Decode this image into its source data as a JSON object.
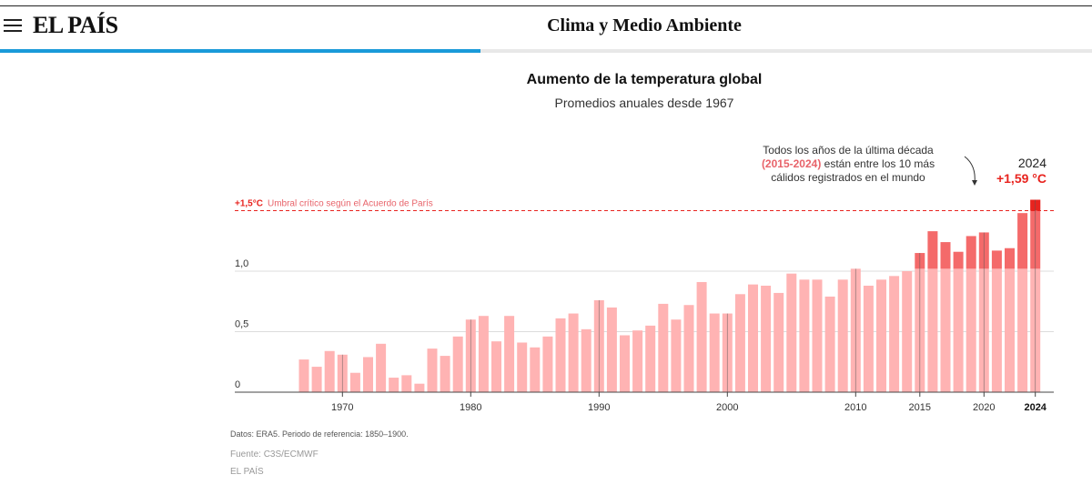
{
  "header": {
    "logo": "EL PAÍS",
    "section": "Clima y Medio Ambiente",
    "read_progress": 0.44
  },
  "chart_data": {
    "type": "bar",
    "title": "Aumento de la temperatura global",
    "subtitle": "Promedios anuales desde 1967",
    "x": [
      1967,
      1968,
      1969,
      1970,
      1971,
      1972,
      1973,
      1974,
      1975,
      1976,
      1977,
      1978,
      1979,
      1980,
      1981,
      1982,
      1983,
      1984,
      1985,
      1986,
      1987,
      1988,
      1989,
      1990,
      1991,
      1992,
      1993,
      1994,
      1995,
      1996,
      1997,
      1998,
      1999,
      2000,
      2001,
      2002,
      2003,
      2004,
      2005,
      2006,
      2007,
      2008,
      2009,
      2010,
      2011,
      2012,
      2013,
      2014,
      2015,
      2016,
      2017,
      2018,
      2019,
      2020,
      2021,
      2022,
      2023,
      2024
    ],
    "values": [
      0.27,
      0.21,
      0.34,
      0.31,
      0.16,
      0.29,
      0.4,
      0.12,
      0.14,
      0.07,
      0.36,
      0.3,
      0.46,
      0.6,
      0.63,
      0.42,
      0.63,
      0.41,
      0.37,
      0.46,
      0.61,
      0.65,
      0.52,
      0.76,
      0.7,
      0.47,
      0.51,
      0.55,
      0.73,
      0.6,
      0.72,
      0.91,
      0.65,
      0.65,
      0.81,
      0.89,
      0.88,
      0.82,
      0.98,
      0.93,
      0.93,
      0.79,
      0.93,
      1.02,
      0.88,
      0.93,
      0.96,
      1.0,
      1.15,
      1.33,
      1.24,
      1.16,
      1.29,
      1.32,
      1.17,
      1.19,
      1.48,
      1.59
    ],
    "highlight_from": 2015,
    "ylim": [
      0,
      1.7
    ],
    "yticks": [
      {
        "value": 0,
        "label": "0"
      },
      {
        "value": 0.5,
        "label": "0,5"
      },
      {
        "value": 1.0,
        "label": "1,0"
      }
    ],
    "xticks": [
      {
        "value": 1970,
        "label": "1970"
      },
      {
        "value": 1980,
        "label": "1980"
      },
      {
        "value": 1990,
        "label": "1990"
      },
      {
        "value": 2000,
        "label": "2000"
      },
      {
        "value": 2010,
        "label": "2010"
      },
      {
        "value": 2015,
        "label": "2015"
      },
      {
        "value": 2020,
        "label": "2020"
      },
      {
        "value": 2024,
        "label": "2024",
        "bold": true
      }
    ],
    "threshold": {
      "value": 1.5,
      "label_value": "+1,5°C",
      "label_text": "Umbral crítico según el Acuerdo de París"
    },
    "annotation": {
      "lines": [
        "Todos los años de la última década",
        "están entre los 10 más",
        "cálidos registrados en el mundo"
      ],
      "highlight": "(2015-2024)"
    },
    "latest": {
      "year_label": "2024",
      "value_label": "+1,59 °C"
    },
    "colors": {
      "bar": "#ffb3b3",
      "bar_top": "#f46a6a",
      "bar_last": "#e8231e",
      "threshold": "#e8231e",
      "grid": "#dcdcdc",
      "axis": "#444444",
      "highlight_text": "#e8636a"
    }
  },
  "footer": {
    "note": "Datos: ERA5. Periodo de referencia: 1850–1900.",
    "source": "Fuente: C3S/ECMWF",
    "credit": "EL PAÍS"
  }
}
